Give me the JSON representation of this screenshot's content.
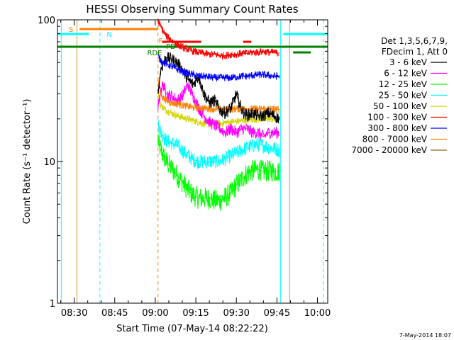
{
  "chart_data": {
    "type": "line",
    "title": "HESSI Observing Summary Count Rates",
    "xlabel": "Start Time (07-May-14 08:22:22)",
    "ylabel": "Count Rate (s⁻¹ detector⁻¹)",
    "y_scale": "log",
    "ylim": [
      1,
      100
    ],
    "x_units": "minutes after 08:00",
    "xlim": [
      23.8,
      123.8
    ],
    "x_ticks": [
      {
        "value": 30,
        "label": "08:30"
      },
      {
        "value": 45,
        "label": "08:45"
      },
      {
        "value": 60,
        "label": "09:00"
      },
      {
        "value": 75,
        "label": "09:15"
      },
      {
        "value": 90,
        "label": "09:30"
      },
      {
        "value": 105,
        "label": "09:45"
      },
      {
        "value": 120,
        "label": "10:00"
      }
    ],
    "y_ticks": [
      {
        "value": 100,
        "label": "100"
      },
      {
        "value": 10,
        "label": "10"
      },
      {
        "value": 1,
        "label": "1"
      }
    ],
    "legend": {
      "placement": "right",
      "header": [
        "Det 1,3,5,6,7,9,",
        "FDecim 1, Att 0"
      ]
    },
    "series": [
      {
        "name": "3 - 6 keV",
        "color": "#000000",
        "x": [
          61,
          62,
          63,
          64,
          66,
          68,
          70,
          72,
          74,
          76,
          78,
          80,
          82,
          84,
          86,
          88,
          90,
          92,
          94,
          96,
          98,
          100,
          102,
          104,
          106
        ],
        "y": [
          30,
          44,
          50,
          54,
          53,
          50,
          45,
          38,
          35,
          40,
          30,
          26,
          27,
          23,
          22,
          24,
          30,
          23,
          21,
          22,
          21,
          21,
          22,
          21,
          20
        ]
      },
      {
        "name": "6 - 12 keV",
        "color": "#ff00ff",
        "x": [
          61,
          62,
          63,
          64,
          66,
          68,
          70,
          72,
          74,
          76,
          78,
          80,
          82,
          84,
          86,
          88,
          90,
          92,
          94,
          96,
          98,
          100,
          102,
          104,
          106
        ],
        "y": [
          24,
          32,
          35,
          30,
          29,
          27,
          29,
          35,
          29,
          24,
          21,
          19,
          18,
          17,
          16,
          17,
          16,
          17,
          17,
          16,
          16,
          15,
          16,
          16,
          16
        ]
      },
      {
        "name": "12 - 25 keV",
        "color": "#00ff00",
        "x": [
          61,
          62,
          63,
          64,
          66,
          68,
          70,
          72,
          74,
          76,
          78,
          80,
          82,
          84,
          86,
          88,
          90,
          92,
          94,
          96,
          98,
          100,
          102,
          104,
          106
        ],
        "y": [
          14,
          12,
          11,
          10,
          9,
          8,
          7.2,
          6.3,
          5.8,
          5.5,
          5.5,
          5.5,
          5.3,
          5.3,
          5.6,
          6,
          6.8,
          7.5,
          8.3,
          8.6,
          8.8,
          8.5,
          8.6,
          8.5,
          8.5
        ]
      },
      {
        "name": "25 - 50 keV",
        "color": "#00ffff",
        "x": [
          61,
          62,
          63,
          64,
          66,
          68,
          70,
          72,
          74,
          76,
          78,
          80,
          82,
          84,
          86,
          88,
          90,
          92,
          94,
          96,
          98,
          100,
          102,
          104,
          106
        ],
        "y": [
          19,
          16,
          15,
          14,
          13.5,
          13,
          12,
          11,
          10.3,
          10,
          10,
          10,
          10,
          10,
          10.5,
          11,
          11.5,
          12,
          12.5,
          13,
          13.2,
          13,
          12.6,
          12.3,
          12
        ]
      },
      {
        "name": "50 - 100 keV",
        "color": "#d4d400",
        "x": [
          61,
          62,
          63,
          64,
          66,
          68,
          70,
          72,
          74,
          76,
          78,
          80,
          82,
          84,
          86,
          88,
          90,
          92,
          94,
          96,
          98,
          100,
          102,
          104,
          106
        ],
        "y": [
          31,
          25,
          24,
          23,
          22,
          21,
          20.5,
          20,
          19.5,
          19,
          18.5,
          18.5,
          18.5,
          18.5,
          18.8,
          19,
          19.2,
          19.4,
          19.6,
          19.8,
          20,
          20,
          20,
          19.8,
          19.6
        ]
      },
      {
        "name": "100 - 300 keV",
        "color": "#ff0000",
        "x": [
          61,
          62,
          63,
          64,
          66,
          68,
          70,
          72,
          74,
          76,
          78,
          80,
          82,
          84,
          86,
          88,
          90,
          92,
          94,
          96,
          98,
          100,
          102,
          104,
          106
        ],
        "y": [
          98,
          90,
          83,
          77,
          72,
          67,
          64,
          62,
          60,
          59,
          58,
          57,
          57,
          56,
          56,
          57,
          57,
          58,
          58,
          59,
          59,
          60,
          59,
          59,
          58
        ]
      },
      {
        "name": "300 - 800 keV",
        "color": "#0000ff",
        "x": [
          61,
          62,
          63,
          64,
          66,
          68,
          70,
          72,
          74,
          76,
          78,
          80,
          82,
          84,
          86,
          88,
          90,
          92,
          94,
          96,
          98,
          100,
          102,
          104,
          106
        ],
        "y": [
          55,
          52,
          50,
          49,
          47,
          45,
          43,
          42,
          41,
          40,
          40,
          39.5,
          39,
          39,
          39,
          39,
          39.5,
          40,
          40,
          40.5,
          41,
          41,
          40.5,
          40,
          40
        ]
      },
      {
        "name": "800 - 7000 keV",
        "color": "#ff7f00",
        "x": [
          61,
          62,
          63,
          64,
          66,
          68,
          70,
          72,
          74,
          76,
          78,
          80,
          82,
          84,
          86,
          88,
          90,
          92,
          94,
          96,
          98,
          100,
          102,
          104,
          106
        ],
        "y": [
          38,
          30,
          28,
          27,
          26,
          25.5,
          25,
          24.5,
          24,
          24,
          23.8,
          23.6,
          23.5,
          23.4,
          23.4,
          23.4,
          23.5,
          23.6,
          23.6,
          23.5,
          23.5,
          23.5,
          23.5,
          23.4,
          23.3
        ]
      },
      {
        "name": "7000 - 20000 keV",
        "color": "#8b6914",
        "x": [],
        "y": []
      }
    ],
    "flag_markers": [
      {
        "label": "S",
        "color": "#ff7f00"
      },
      {
        "label": "N",
        "color": "#00ffff"
      },
      {
        "label": "F",
        "color": "#ff7f00"
      },
      {
        "label": "RDE",
        "color": "#008000"
      },
      {
        "label": "PD",
        "color": "#008000"
      }
    ],
    "timestamp": "7-May-2014 18:07"
  }
}
